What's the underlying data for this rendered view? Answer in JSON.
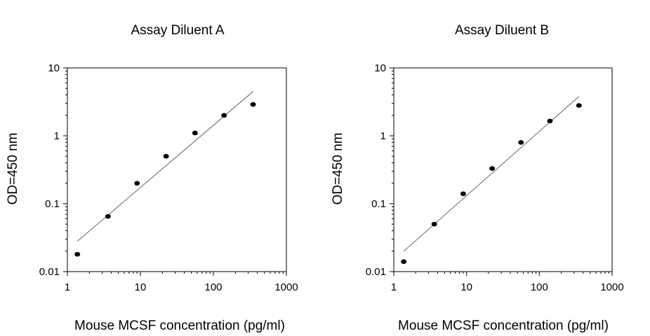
{
  "chart_data": [
    {
      "type": "scatter",
      "title": "Assay Diluent A",
      "xlabel": "Mouse MCSF concentration (pg/ml)",
      "ylabel": "OD=450 nm",
      "xscale": "log",
      "yscale": "log",
      "xlim": [
        1,
        1000
      ],
      "ylim": [
        0.01,
        10
      ],
      "xticks": [
        "1",
        "10",
        "100",
        "1000"
      ],
      "yticks": [
        "0.01",
        "0.1",
        "1",
        "10"
      ],
      "grid": false,
      "series": [
        {
          "x": [
            1.37,
            3.6,
            9.0,
            22.5,
            56.0,
            140.0,
            350.0
          ],
          "y": [
            0.018,
            0.065,
            0.2,
            0.5,
            1.1,
            2.0,
            2.9
          ]
        }
      ],
      "fit_line": {
        "x": [
          1.37,
          350.0
        ],
        "y": [
          0.028,
          4.5
        ]
      }
    },
    {
      "type": "scatter",
      "title": "Assay Diluent B",
      "xlabel": "Mouse MCSF concentration (pg/ml)",
      "ylabel": "OD=450 nm",
      "xscale": "log",
      "yscale": "log",
      "xlim": [
        1,
        1000
      ],
      "ylim": [
        0.01,
        10
      ],
      "xticks": [
        "1",
        "10",
        "100",
        "1000"
      ],
      "yticks": [
        "0.01",
        "0.1",
        "1",
        "10"
      ],
      "grid": false,
      "series": [
        {
          "x": [
            1.37,
            3.6,
            9.0,
            22.5,
            56.0,
            140.0,
            350.0
          ],
          "y": [
            0.014,
            0.05,
            0.14,
            0.33,
            0.8,
            1.65,
            2.8
          ]
        }
      ],
      "fit_line": {
        "x": [
          1.37,
          350.0
        ],
        "y": [
          0.02,
          3.8
        ]
      }
    }
  ]
}
